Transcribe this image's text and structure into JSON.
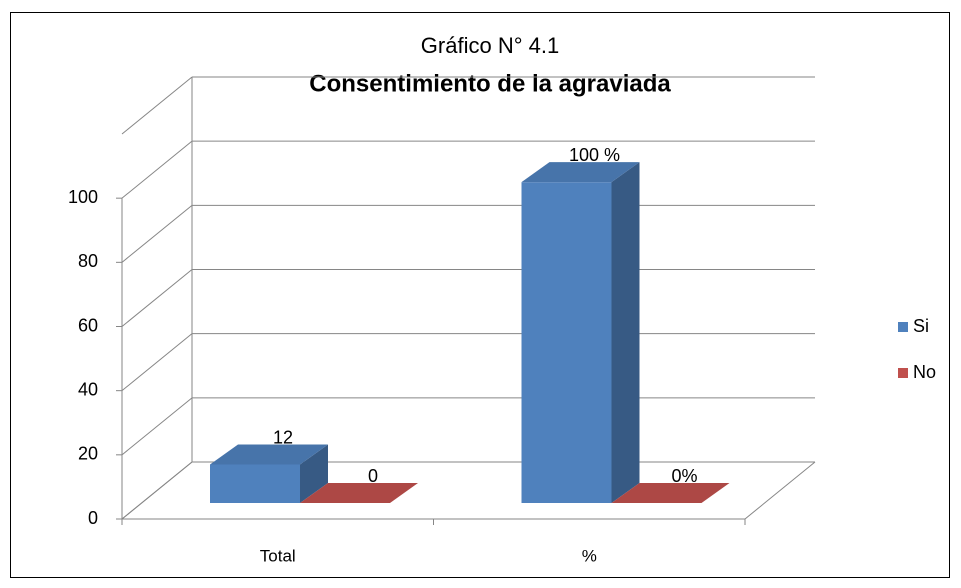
{
  "chart_data": {
    "type": "bar3d",
    "title": "Gráfico N° 4.1",
    "subtitle": "Consentimiento de la agraviada",
    "categories": [
      "Total",
      "%"
    ],
    "series": [
      {
        "name": "Si",
        "color": "#4f81bd",
        "values": [
          12,
          100
        ],
        "value_labels": [
          "12",
          "100 %"
        ]
      },
      {
        "name": "No",
        "color": "#c0504d",
        "values": [
          0,
          0
        ],
        "value_labels": [
          "0",
          "0%"
        ]
      }
    ],
    "ylim": [
      0,
      120
    ],
    "yticks": [
      0,
      20,
      40,
      60,
      80,
      100
    ],
    "grid": true,
    "legend": "right"
  }
}
